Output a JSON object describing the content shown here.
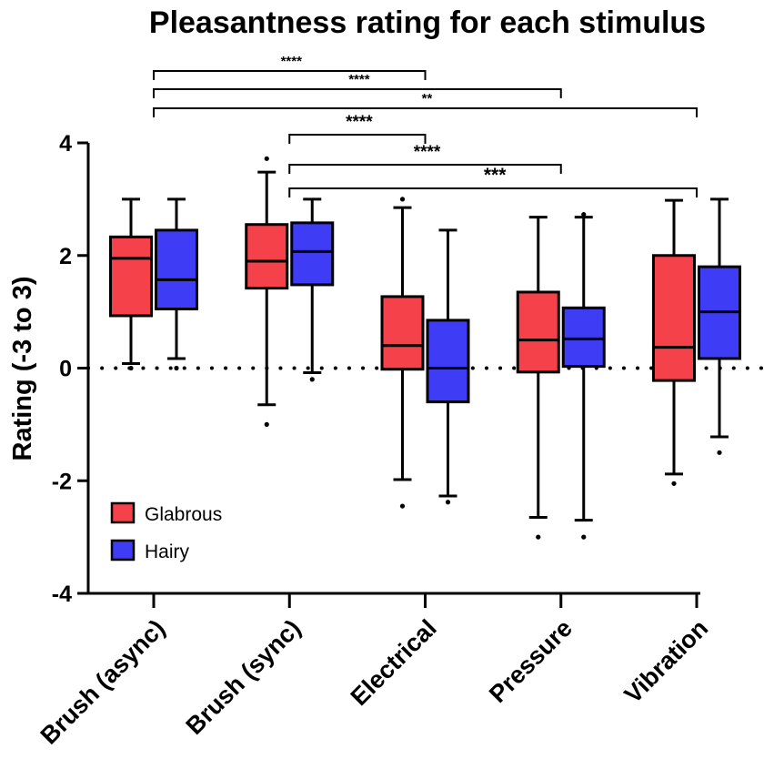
{
  "chart_data": {
    "type": "boxplot",
    "title": "Pleasantness rating for each stimulus",
    "xlabel": "",
    "ylabel": "Rating (-3 to 3)",
    "ylim": [
      -4,
      4
    ],
    "yticks": [
      4,
      2,
      0,
      -2,
      -4
    ],
    "ytick_labels": [
      "4",
      "2",
      "0",
      "-2",
      "-4"
    ],
    "reference_line": {
      "y": 0,
      "style": "dotted"
    },
    "categories": [
      "Brush (async)",
      "Brush (sync)",
      "Electrical",
      "Pressure",
      "Vibration"
    ],
    "series": [
      {
        "name": "Glabrous",
        "color": "#f5424a",
        "boxes": [
          {
            "min": 0.08,
            "q1": 0.93,
            "median": 1.95,
            "q3": 2.33,
            "max": 3.0,
            "outliers": [
              0.0
            ]
          },
          {
            "min": -0.65,
            "q1": 1.42,
            "median": 1.9,
            "q3": 2.55,
            "max": 3.48,
            "outliers": [
              3.72,
              -1.0
            ]
          },
          {
            "min": -1.98,
            "q1": -0.02,
            "median": 0.4,
            "q3": 1.27,
            "max": 2.85,
            "outliers": [
              3.0,
              -2.45
            ]
          },
          {
            "min": -2.65,
            "q1": -0.07,
            "median": 0.5,
            "q3": 1.35,
            "max": 2.68,
            "outliers": [
              -3.0
            ]
          },
          {
            "min": -1.88,
            "q1": -0.22,
            "median": 0.37,
            "q3": 2.0,
            "max": 2.98,
            "outliers": [
              -2.05
            ]
          }
        ]
      },
      {
        "name": "Hairy",
        "color": "#3f3cf5",
        "boxes": [
          {
            "min": 0.17,
            "q1": 1.05,
            "median": 1.57,
            "q3": 2.45,
            "max": 3.0,
            "outliers": [
              0.0
            ]
          },
          {
            "min": -0.08,
            "q1": 1.48,
            "median": 2.07,
            "q3": 2.58,
            "max": 3.0,
            "outliers": [
              -0.2
            ]
          },
          {
            "min": -2.27,
            "q1": -0.6,
            "median": 0.0,
            "q3": 0.85,
            "max": 2.45,
            "outliers": [
              -2.38
            ]
          },
          {
            "min": -2.7,
            "q1": 0.03,
            "median": 0.52,
            "q3": 1.07,
            "max": 2.68,
            "outliers": [
              2.73,
              -3.0
            ]
          },
          {
            "min": -1.22,
            "q1": 0.17,
            "median": 1.0,
            "q3": 1.8,
            "max": 3.0,
            "outliers": [
              -1.5
            ]
          }
        ]
      }
    ],
    "significance": [
      {
        "from": "Brush (async)",
        "to": "Electrical",
        "stars": "****"
      },
      {
        "from": "Brush (async)",
        "to": "Pressure",
        "stars": "****"
      },
      {
        "from": "Brush (async)",
        "to": "Vibration",
        "stars": "**"
      },
      {
        "from": "Brush (sync)",
        "to": "Electrical",
        "stars": "****"
      },
      {
        "from": "Brush (sync)",
        "to": "Pressure",
        "stars": "****"
      },
      {
        "from": "Brush (sync)",
        "to": "Vibration",
        "stars": "***"
      }
    ],
    "legend": {
      "position": "bottom-left",
      "entries": [
        "Glabrous",
        "Hairy"
      ]
    }
  }
}
